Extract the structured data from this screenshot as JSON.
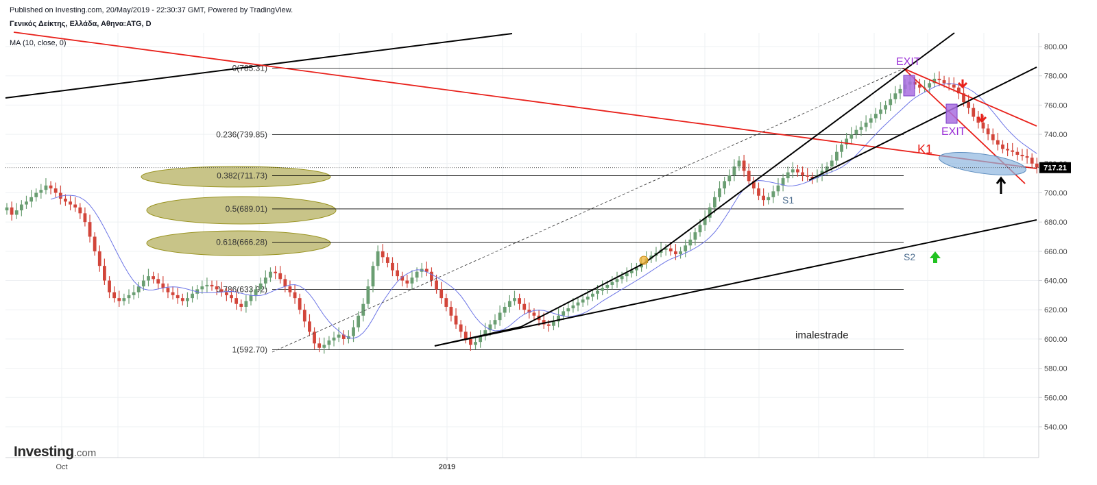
{
  "header": {
    "published": "Published on Investing.com, 20/May/2019 - 22:30:37 GMT, Powered by TradingView.",
    "symbol": "Γενικός Δείκτης, Ελλάδα, Αθηνα:ATG, D",
    "indicator": "MA (10, close, 0)"
  },
  "logo": {
    "word": "Investing",
    "domain": ".com"
  },
  "colors": {
    "up": "#6a9e72",
    "down": "#d2453a",
    "ma": "#6b74e6",
    "trend_red": "#e8201a",
    "trend_black": "#000000",
    "price_tag": "#000000",
    "fib_ellipse": "#c8c488",
    "exit_box": "#a96ee0",
    "arrow_green": "#21c221"
  },
  "chart_data": {
    "type": "candlestick",
    "title": "",
    "xlabel": "",
    "ylabel": "",
    "x_ticks": [
      "Oct",
      "2019"
    ],
    "y_ticks": [
      "540.00",
      "560.00",
      "580.00",
      "600.00",
      "620.00",
      "640.00",
      "660.00",
      "680.00",
      "700.00",
      "720.00",
      "740.00",
      "760.00",
      "780.00",
      "800.00"
    ],
    "ylim": [
      520,
      810
    ],
    "last_price": "717.21",
    "grid": true,
    "closes": [
      690,
      685,
      688,
      692,
      694,
      697,
      700,
      702,
      705,
      703,
      700,
      696,
      694,
      692,
      690,
      686,
      680,
      670,
      660,
      650,
      640,
      632,
      628,
      626,
      628,
      630,
      632,
      636,
      640,
      643,
      641,
      638,
      635,
      632,
      630,
      628,
      626,
      628,
      631,
      634,
      636,
      637,
      636,
      634,
      632,
      630,
      628,
      624,
      622,
      626,
      630,
      634,
      638,
      642,
      646,
      645,
      641,
      636,
      632,
      628,
      620,
      612,
      605,
      597,
      594,
      596,
      599,
      601,
      603,
      600,
      602,
      608,
      616,
      624,
      636,
      650,
      660,
      656,
      652,
      647,
      643,
      640,
      638,
      642,
      646,
      648,
      646,
      640,
      634,
      628,
      622,
      616,
      610,
      605,
      600,
      596,
      598,
      602,
      606,
      610,
      613,
      618,
      622,
      626,
      628,
      624,
      620,
      618,
      616,
      613,
      610,
      609,
      612,
      616,
      619,
      621,
      623,
      625,
      627,
      629,
      631,
      633,
      635,
      637,
      639,
      641,
      643,
      645,
      647,
      649,
      652,
      655,
      657,
      659,
      661,
      662,
      660,
      658,
      660,
      664,
      668,
      673,
      678,
      683,
      690,
      697,
      703,
      708,
      712,
      718,
      722,
      715,
      708,
      703,
      698,
      695,
      697,
      701,
      705,
      710,
      714,
      716,
      714,
      712,
      711,
      710,
      712,
      715,
      718,
      722,
      728,
      733,
      737,
      740,
      743,
      745,
      748,
      751,
      754,
      757,
      760,
      764,
      768,
      771,
      774,
      776,
      774,
      772,
      772,
      775,
      778,
      777,
      775,
      774,
      772,
      768,
      762,
      758,
      752,
      748,
      744,
      740,
      736,
      733,
      730,
      729,
      728,
      726,
      725,
      724,
      720,
      717.21
    ],
    "annotations": {
      "fib_labels": [
        "0(785.31)",
        "0.236(739.85)",
        "0.382(711.73)",
        "0.5(689.01)",
        "0.618(666.28)",
        "0.786(633.92)",
        "1(592.70)"
      ],
      "text": [
        "EXIT",
        "EXIT",
        "K1",
        "S1",
        "S2",
        "imalestrade"
      ]
    }
  }
}
